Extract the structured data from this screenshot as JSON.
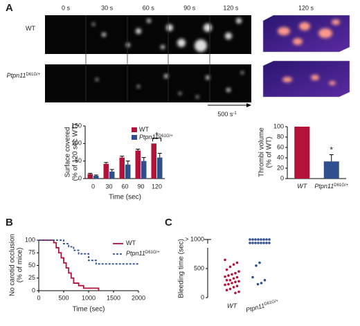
{
  "figure": {
    "panels": [
      "A",
      "B",
      "C"
    ],
    "time_labels": [
      "0 s",
      "30 s",
      "60 s",
      "90 s",
      "120 s"
    ],
    "row_labels": [
      {
        "name": "WT"
      },
      {
        "name": "Ptpn11",
        "sup": "D61G/+"
      }
    ],
    "render_label": "120 s",
    "flow": {
      "text": "500 s",
      "sup": "-1"
    }
  },
  "chart_data": [
    {
      "type": "bar",
      "x_label": "Time (sec)",
      "y_label": [
        "Surface covered",
        "(% of 120 sec WT)"
      ],
      "categories": [
        0,
        30,
        60,
        90,
        120
      ],
      "ylim": [
        0,
        150
      ],
      "yticks": [
        0,
        50,
        100,
        150
      ],
      "series": [
        {
          "name": "WT",
          "color": "#b5123a",
          "values": [
            13,
            42,
            60,
            80,
            100
          ],
          "errors": [
            2,
            4,
            4,
            4,
            0
          ]
        },
        {
          "name": "Ptpn11",
          "sup": "D61G/+",
          "color": "#2f4f8f",
          "values": [
            8,
            20,
            40,
            50,
            60
          ],
          "errors": [
            2,
            6,
            10,
            10,
            12
          ]
        }
      ],
      "annotations": [
        "*"
      ]
    },
    {
      "type": "bar",
      "y_label": [
        "Thrombi volume",
        "(% of WT)"
      ],
      "categories": [
        {
          "name": "WT"
        },
        {
          "name": "Ptpn11",
          "sup": "D61G/+"
        }
      ],
      "ylim": [
        0,
        100
      ],
      "yticks": [
        0,
        20,
        40,
        60,
        80,
        100
      ],
      "colors": [
        "#b5123a",
        "#2f4f8f"
      ],
      "values": [
        100,
        33
      ],
      "errors": [
        0,
        13
      ],
      "annotations": [
        "*"
      ]
    },
    {
      "type": "step",
      "x_label": "Time (sec)",
      "y_label": [
        "No carotid occlusion",
        "(% of mice)"
      ],
      "xlim": [
        0,
        2000
      ],
      "xticks": [
        0,
        500,
        1000,
        1500,
        2000
      ],
      "ylim": [
        0,
        100
      ],
      "yticks": [
        0,
        25,
        50,
        75,
        100
      ],
      "series": [
        {
          "name": "WT",
          "color": "#b5123a",
          "dash": false,
          "x": [
            0,
            300,
            350,
            400,
            450,
            500,
            550,
            600,
            650,
            700,
            800,
            900,
            1200
          ],
          "values": [
            100,
            95,
            85,
            75,
            65,
            55,
            45,
            35,
            25,
            15,
            10,
            5,
            0
          ]
        },
        {
          "name": "Ptpn11",
          "sup": "D61G/+",
          "color": "#2f4f8f",
          "dash": true,
          "x": [
            0,
            500,
            600,
            700,
            800,
            1000,
            1150,
            2000
          ],
          "values": [
            100,
            93,
            87,
            80,
            73,
            60,
            53,
            53
          ]
        }
      ]
    },
    {
      "type": "strip",
      "y_label": "Bleeding time (sec)",
      "ylim": [
        0,
        1000
      ],
      "yticks": [
        0,
        500,
        {
          "value": 1000,
          "label": "> 1000"
        }
      ],
      "categories": [
        {
          "name": "WT"
        },
        {
          "name": "Ptpn11",
          "sup": "D61G/+"
        }
      ],
      "colors": [
        "#b5123a",
        "#2f4f8f"
      ],
      "groups": [
        [
          650,
          600,
          570,
          530,
          480,
          450,
          420,
          400,
          380,
          360,
          350,
          330,
          300,
          300,
          280,
          270,
          250,
          230,
          220,
          200,
          180,
          150,
          130,
          100,
          80
        ],
        [
          1000,
          1000,
          1000,
          1000,
          1000,
          1000,
          1000,
          1000,
          1000,
          1000,
          1000,
          1000,
          1000,
          1000,
          1000,
          1000,
          600,
          550,
          350,
          300,
          250,
          230
        ]
      ]
    }
  ]
}
